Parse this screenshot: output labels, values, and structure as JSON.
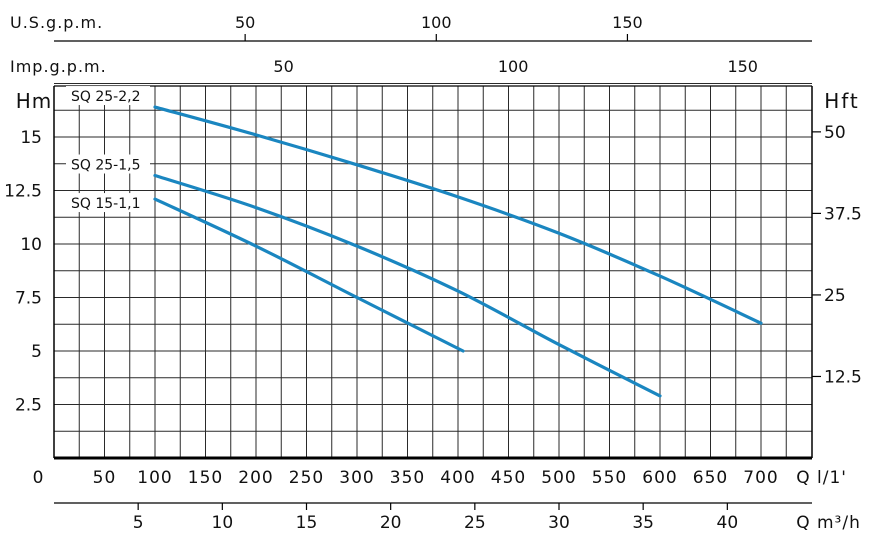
{
  "chart_data": {
    "type": "line",
    "axes": {
      "left": {
        "label": "Hm",
        "ticks": [
          "2.5",
          "5",
          "7.5",
          "10",
          "12.5",
          "15"
        ],
        "values": [
          2.5,
          5,
          7.5,
          10,
          12.5,
          15
        ],
        "range": [
          0,
          17.5
        ]
      },
      "right": {
        "label": "Hft",
        "ticks": [
          "12.5",
          "25",
          "37.5",
          "50"
        ],
        "values": [
          12.5,
          25,
          37.5,
          50
        ]
      },
      "bottom_primary": {
        "label_q": "Q",
        "label_unit": "l/1'",
        "zero": "0",
        "ticks": [
          "50",
          "100",
          "150",
          "200",
          "250",
          "300",
          "350",
          "400",
          "450",
          "500",
          "550",
          "600",
          "650",
          "700"
        ],
        "values": [
          50,
          100,
          150,
          200,
          250,
          300,
          350,
          400,
          450,
          500,
          550,
          600,
          650,
          700
        ],
        "range": [
          0,
          750
        ]
      },
      "bottom_secondary": {
        "label_q": "Q",
        "label_unit": "m³/h",
        "ticks": [
          "5",
          "10",
          "15",
          "20",
          "25",
          "30",
          "35",
          "40"
        ],
        "values": [
          5,
          10,
          15,
          20,
          25,
          30,
          35,
          40
        ]
      },
      "top_us": {
        "label": "U.S.g.p.m.",
        "ticks": [
          "50",
          "100",
          "150"
        ],
        "values": [
          50,
          100,
          150
        ]
      },
      "top_imp": {
        "label": "Imp.g.p.m.",
        "ticks": [
          "50",
          "100",
          "150"
        ],
        "values": [
          50,
          100,
          150
        ]
      }
    },
    "grid": true,
    "series": [
      {
        "name": "SQ 25-2,2",
        "x": [
          100,
          200,
          300,
          400,
          500,
          600,
          700
        ],
        "y": [
          16.4,
          15.1,
          13.7,
          12.2,
          10.5,
          8.5,
          6.3
        ]
      },
      {
        "name": "SQ 25-1,5",
        "x": [
          100,
          200,
          300,
          400,
          500,
          600
        ],
        "y": [
          13.2,
          11.7,
          9.9,
          7.8,
          5.3,
          2.9
        ]
      },
      {
        "name": "SQ 15-1,1",
        "x": [
          100,
          200,
          300,
          405
        ],
        "y": [
          12.1,
          9.9,
          7.5,
          5.0
        ]
      }
    ],
    "colors": {
      "curve": "#1a86c0",
      "grid": "#2a2a2a"
    }
  }
}
